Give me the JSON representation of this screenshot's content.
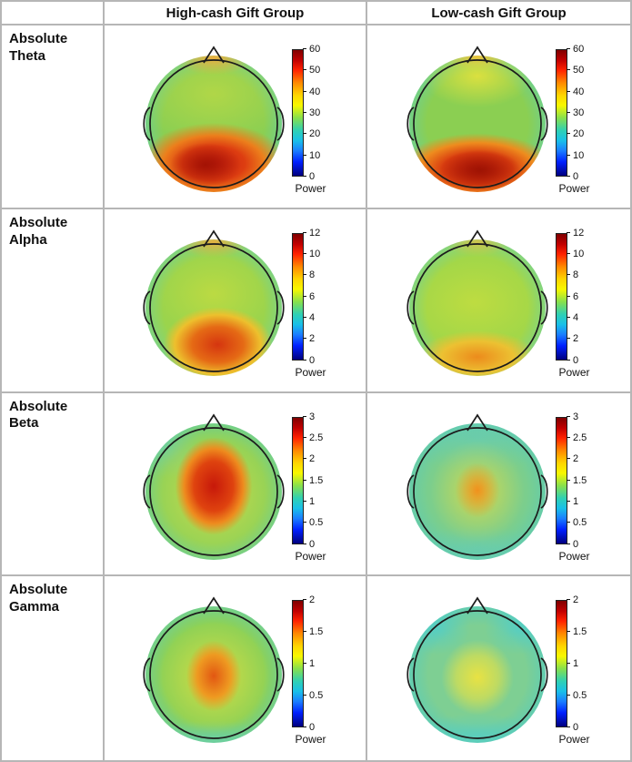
{
  "figure": {
    "columns": [
      "High-cash Gift Group",
      "Low-cash Gift Group"
    ],
    "rows": [
      {
        "label": "Absolute\nTheta",
        "colorbar": {
          "unit": "Power",
          "ticks": [
            "60",
            "50",
            "40",
            "30",
            "20",
            "10",
            "0"
          ]
        }
      },
      {
        "label": "Absolute\nAlpha",
        "colorbar": {
          "unit": "Power",
          "ticks": [
            "12",
            "10",
            "8",
            "6",
            "4",
            "2",
            "0"
          ]
        }
      },
      {
        "label": "Absolute\nBeta",
        "colorbar": {
          "unit": "Power",
          "ticks": [
            "3",
            "2.5",
            "2",
            "1.5",
            "1",
            "0.5",
            "0"
          ]
        }
      },
      {
        "label": "Absolute\nGamma",
        "colorbar": {
          "unit": "Power",
          "ticks": [
            "2",
            "1.5",
            "1",
            "0.5",
            "0"
          ]
        }
      }
    ]
  },
  "chart_data": [
    {
      "type": "heatmap",
      "band": "Absolute Theta",
      "group": "High-cash Gift Group",
      "colormap": "jet",
      "colorbar_label": "Power",
      "scale": {
        "min": 0,
        "max": 60,
        "ticks": [
          0,
          10,
          20,
          30,
          40,
          50,
          60
        ]
      },
      "baseline_power": 28,
      "peaks": [
        {
          "region": "parieto-occipital midline",
          "approx_value": 58
        },
        {
          "region": "frontal midline near nose",
          "approx_value": 38
        }
      ],
      "pattern": {
        "base_color": "#8bcf52",
        "ring": {
          "color": "rgba(95,208,175,0.55)",
          "start": 74
        },
        "spots": [
          {
            "x": 44,
            "y": 80,
            "rx": 26,
            "ry": 16,
            "stops": [
              [
                "#a31204",
                0
              ],
              [
                "rgba(163,18,4,0)",
                100
              ]
            ]
          },
          {
            "x": 50,
            "y": 79,
            "rx": 60,
            "ry": 33,
            "stops": [
              [
                "#c72010",
                0
              ],
              [
                "#dd3d11",
                38
              ],
              [
                "#ec7f1c",
                62
              ],
              [
                "rgba(236,127,28,0)",
                90
              ]
            ]
          },
          {
            "x": 50,
            "y": 2,
            "rx": 30,
            "ry": 12,
            "stops": [
              [
                "rgba(241,173,59,0.95)",
                0
              ],
              [
                "rgba(241,173,59,0)",
                100
              ]
            ]
          },
          {
            "x": 50,
            "y": 28,
            "rx": 62,
            "ry": 40,
            "stops": [
              [
                "rgba(213,222,61,0.5)",
                0
              ],
              [
                "rgba(213,222,61,0)",
                92
              ]
            ]
          }
        ]
      }
    },
    {
      "type": "heatmap",
      "band": "Absolute Theta",
      "group": "Low-cash Gift Group",
      "colormap": "jet",
      "colorbar_label": "Power",
      "scale": {
        "min": 0,
        "max": 60,
        "ticks": [
          0,
          10,
          20,
          30,
          40,
          50,
          60
        ]
      },
      "baseline_power": 30,
      "peaks": [
        {
          "region": "occipital midline band",
          "approx_value": 58
        },
        {
          "region": "frontal midline patch",
          "approx_value": 44
        }
      ],
      "pattern": {
        "base_color": "#8bcf52",
        "ring": {
          "color": "rgba(95,208,175,0.55)",
          "start": 74
        },
        "spots": [
          {
            "x": 52,
            "y": 84,
            "rx": 30,
            "ry": 15,
            "stops": [
              [
                "#9e1303",
                0
              ],
              [
                "rgba(158,19,3,0)",
                100
              ]
            ]
          },
          {
            "x": 50,
            "y": 83,
            "rx": 64,
            "ry": 29,
            "stops": [
              [
                "#c41f0e",
                0
              ],
              [
                "#da3e10",
                40
              ],
              [
                "#ee8c1e",
                66
              ],
              [
                "rgba(238,140,30,0)",
                90
              ]
            ]
          },
          {
            "x": 50,
            "y": 15,
            "rx": 44,
            "ry": 25,
            "stops": [
              [
                "rgba(232,227,60,0.85)",
                0
              ],
              [
                "rgba(232,227,60,0)",
                92
              ]
            ]
          },
          {
            "x": 50,
            "y": 1,
            "rx": 26,
            "ry": 10,
            "stops": [
              [
                "rgba(240,178,60,0.95)",
                0
              ],
              [
                "rgba(240,178,60,0)",
                100
              ]
            ]
          }
        ]
      }
    },
    {
      "type": "heatmap",
      "band": "Absolute Alpha",
      "group": "High-cash Gift Group",
      "colormap": "jet",
      "colorbar_label": "Power",
      "scale": {
        "min": 0,
        "max": 12,
        "ticks": [
          0,
          2,
          4,
          6,
          8,
          10,
          12
        ]
      },
      "baseline_power": 6.5,
      "peaks": [
        {
          "region": "parieto-occipital midline",
          "approx_value": 11.5
        },
        {
          "region": "central midline mild elevation",
          "approx_value": 8
        }
      ],
      "pattern": {
        "base_color": "#9bd44c",
        "ring": {
          "color": "rgba(100,210,178,0.5)",
          "start": 74
        },
        "spots": [
          {
            "x": 53,
            "y": 77,
            "rx": 42,
            "ry": 29,
            "stops": [
              [
                "#d5350f",
                0
              ],
              [
                "#e56a15",
                45
              ],
              [
                "#edc02d",
                75
              ],
              [
                "rgba(237,192,45,0)",
                95
              ]
            ]
          },
          {
            "x": 50,
            "y": 40,
            "rx": 46,
            "ry": 34,
            "stops": [
              [
                "rgba(219,224,57,0.5)",
                0
              ],
              [
                "rgba(219,224,57,0)",
                92
              ]
            ]
          },
          {
            "x": 50,
            "y": 2,
            "rx": 28,
            "ry": 11,
            "stops": [
              [
                "rgba(240,175,58,0.9)",
                0
              ],
              [
                "rgba(240,175,58,0)",
                100
              ]
            ]
          }
        ]
      }
    },
    {
      "type": "heatmap",
      "band": "Absolute Alpha",
      "group": "Low-cash Gift Group",
      "colormap": "jet",
      "colorbar_label": "Power",
      "scale": {
        "min": 0,
        "max": 12,
        "ticks": [
          0,
          2,
          4,
          6,
          8,
          10,
          12
        ]
      },
      "baseline_power": 6.5,
      "peaks": [
        {
          "region": "occipital midline",
          "approx_value": 9.5
        }
      ],
      "pattern": {
        "base_color": "#a3d748",
        "ring": {
          "color": "rgba(100,210,178,0.5)",
          "start": 74
        },
        "spots": [
          {
            "x": 50,
            "y": 86,
            "rx": 48,
            "ry": 21,
            "stops": [
              [
                "#ec8b1c",
                0
              ],
              [
                "#ecc132",
                55
              ],
              [
                "rgba(236,193,50,0)",
                92
              ]
            ]
          },
          {
            "x": 48,
            "y": 46,
            "rx": 50,
            "ry": 34,
            "stops": [
              [
                "rgba(222,226,56,0.45)",
                0
              ],
              [
                "rgba(222,226,56,0)",
                92
              ]
            ]
          },
          {
            "x": 50,
            "y": 2,
            "rx": 26,
            "ry": 10,
            "stops": [
              [
                "rgba(238,190,60,0.7)",
                0
              ],
              [
                "rgba(238,190,60,0)",
                100
              ]
            ]
          }
        ]
      }
    },
    {
      "type": "heatmap",
      "band": "Absolute Beta",
      "group": "High-cash Gift Group",
      "colormap": "jet",
      "colorbar_label": "Power",
      "scale": {
        "min": 0,
        "max": 3,
        "ticks": [
          0,
          0.5,
          1,
          1.5,
          2,
          2.5,
          3
        ]
      },
      "baseline_power": 1.8,
      "peaks": [
        {
          "region": "central midline (vertex)",
          "approx_value": 3.0
        }
      ],
      "pattern": {
        "base_color": "#83d05c",
        "ring": {
          "color": "rgba(95,206,180,0.5)",
          "start": 75
        },
        "spots": [
          {
            "x": 50,
            "y": 46,
            "rx": 30,
            "ry": 38,
            "stops": [
              [
                "#c7180a",
                0
              ],
              [
                "#df430f",
                48
              ],
              [
                "#ee8b1e",
                72
              ],
              [
                "rgba(238,139,30,0)",
                94
              ]
            ]
          },
          {
            "x": 50,
            "y": 52,
            "rx": 56,
            "ry": 56,
            "stops": [
              [
                "rgba(233,222,60,0.75)",
                0
              ],
              [
                "rgba(233,222,60,0)",
                94
              ]
            ]
          },
          {
            "x": 16,
            "y": 18,
            "rx": 28,
            "ry": 24,
            "stops": [
              [
                "rgba(102,206,186,0.45)",
                0
              ],
              [
                "rgba(102,206,186,0)",
                92
              ]
            ]
          }
        ]
      }
    },
    {
      "type": "heatmap",
      "band": "Absolute Beta",
      "group": "Low-cash Gift Group",
      "colormap": "jet",
      "colorbar_label": "Power",
      "scale": {
        "min": 0,
        "max": 3,
        "ticks": [
          0,
          0.5,
          1,
          1.5,
          2,
          2.5,
          3
        ]
      },
      "baseline_power": 1.6,
      "peaks": [
        {
          "region": "central midline (vertex)",
          "approx_value": 2.4
        },
        {
          "region": "frontal and occipital borders low",
          "approx_value": 1.2
        }
      ],
      "pattern": {
        "base_color": "#7bce8d",
        "ring": {
          "color": "rgba(88,203,186,0.6)",
          "start": 72
        },
        "spots": [
          {
            "x": 50,
            "y": 49,
            "rx": 17,
            "ry": 21,
            "stops": [
              [
                "#f0911d",
                0
              ],
              [
                "rgba(240,145,29,0)",
                96
              ]
            ]
          },
          {
            "x": 50,
            "y": 50,
            "rx": 38,
            "ry": 40,
            "stops": [
              [
                "rgba(233,220,61,0.8)",
                0
              ],
              [
                "rgba(233,220,61,0)",
                92
              ]
            ]
          },
          {
            "x": 50,
            "y": 11,
            "rx": 58,
            "ry": 28,
            "stops": [
              [
                "rgba(97,204,189,0.55)",
                0
              ],
              [
                "rgba(97,204,189,0)",
                90
              ]
            ]
          },
          {
            "x": 50,
            "y": 92,
            "rx": 58,
            "ry": 19,
            "stops": [
              [
                "rgba(97,204,189,0.5)",
                0
              ],
              [
                "rgba(97,204,189,0)",
                90
              ]
            ]
          }
        ]
      }
    },
    {
      "type": "heatmap",
      "band": "Absolute Gamma",
      "group": "High-cash Gift Group",
      "colormap": "jet",
      "colorbar_label": "Power",
      "scale": {
        "min": 0,
        "max": 2,
        "ticks": [
          0,
          0.5,
          1,
          1.5,
          2
        ]
      },
      "baseline_power": 1.2,
      "peaks": [
        {
          "region": "central midline (vertex)",
          "approx_value": 1.9
        }
      ],
      "pattern": {
        "base_color": "#8dd156",
        "ring": {
          "color": "rgba(95,206,182,0.55)",
          "start": 74
        },
        "spots": [
          {
            "x": 50,
            "y": 51,
            "rx": 21,
            "ry": 27,
            "stops": [
              [
                "#e25712",
                0
              ],
              [
                "#ee9a21",
                58
              ],
              [
                "rgba(238,154,33,0)",
                96
              ]
            ]
          },
          {
            "x": 50,
            "y": 52,
            "rx": 44,
            "ry": 44,
            "stops": [
              [
                "rgba(234,224,60,0.8)",
                0
              ],
              [
                "rgba(234,224,60,0)",
                93
              ]
            ]
          },
          {
            "x": 50,
            "y": 96,
            "rx": 54,
            "ry": 14,
            "stops": [
              [
                "rgba(95,206,190,0.5)",
                0
              ],
              [
                "rgba(95,206,190,0)",
                90
              ]
            ]
          }
        ]
      }
    },
    {
      "type": "heatmap",
      "band": "Absolute Gamma",
      "group": "Low-cash Gift Group",
      "colormap": "jet",
      "colorbar_label": "Power",
      "scale": {
        "min": 0,
        "max": 2,
        "ticks": [
          0,
          0.5,
          1,
          1.5,
          2
        ]
      },
      "baseline_power": 1.0,
      "peaks": [
        {
          "region": "central midline (vertex)",
          "approx_value": 1.5
        },
        {
          "region": "bilateral frontal lows",
          "approx_value": 0.7
        }
      ],
      "pattern": {
        "base_color": "#7ecf93",
        "ring": {
          "color": "rgba(80,203,196,0.6)",
          "start": 72
        },
        "spots": [
          {
            "x": 50,
            "y": 52,
            "rx": 28,
            "ry": 29,
            "stops": [
              [
                "#e8e243",
                0
              ],
              [
                "rgba(232,226,67,0.6)",
                55
              ],
              [
                "rgba(232,226,67,0)",
                95
              ]
            ]
          },
          {
            "x": 20,
            "y": 16,
            "rx": 27,
            "ry": 21,
            "stops": [
              [
                "rgba(80,206,203,0.75)",
                0
              ],
              [
                "rgba(80,206,203,0)",
                92
              ]
            ]
          },
          {
            "x": 80,
            "y": 16,
            "rx": 27,
            "ry": 21,
            "stops": [
              [
                "rgba(80,206,203,0.7)",
                0
              ],
              [
                "rgba(80,206,203,0)",
                92
              ]
            ]
          },
          {
            "x": 50,
            "y": 94,
            "rx": 58,
            "ry": 17,
            "stops": [
              [
                "rgba(80,206,203,0.6)",
                0
              ],
              [
                "rgba(80,206,203,0)",
                90
              ]
            ]
          }
        ]
      }
    }
  ]
}
